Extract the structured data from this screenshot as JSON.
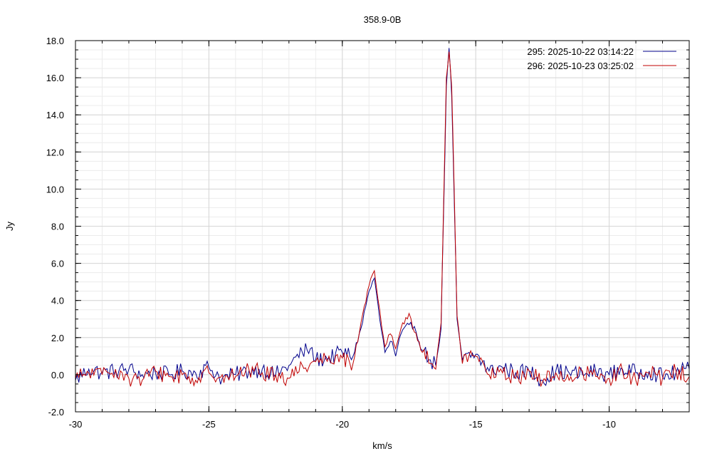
{
  "chart_data": {
    "type": "line",
    "title": "358.9-0B",
    "xlabel": "km/s",
    "ylabel": "Jy",
    "xlim": [
      -30,
      -7.0
    ],
    "ylim": [
      -2.0,
      18.0
    ],
    "x_ticks": [
      -30,
      -25,
      -20,
      -15,
      -10
    ],
    "x_tick_labels": [
      "-30",
      "-25",
      "-20",
      "-15",
      "-10"
    ],
    "y_ticks": [
      -2.0,
      0.0,
      2.0,
      4.0,
      6.0,
      8.0,
      10.0,
      12.0,
      14.0,
      16.0,
      18.0
    ],
    "y_tick_labels": [
      "-2.0",
      "0.0",
      "2.0",
      "4.0",
      "6.0",
      "8.0",
      "10.0",
      "12.0",
      "14.0",
      "16.0",
      "18.0"
    ],
    "grid": true,
    "legend_position": "top-right",
    "series": [
      {
        "name": "295:   2025-10-22 03:14:22",
        "color": "#00008b",
        "x": [
          -30.0,
          -29.5,
          -29.0,
          -28.5,
          -28.0,
          -27.5,
          -27.0,
          -26.5,
          -26.0,
          -25.5,
          -25.0,
          -24.5,
          -24.0,
          -23.5,
          -23.0,
          -22.5,
          -22.0,
          -21.5,
          -21.2,
          -21.0,
          -20.5,
          -20.0,
          -19.6,
          -19.3,
          -19.0,
          -18.8,
          -18.6,
          -18.4,
          -18.2,
          -18.0,
          -17.8,
          -17.5,
          -17.3,
          -17.0,
          -16.7,
          -16.5,
          -16.3,
          -16.2,
          -16.1,
          -16.0,
          -15.9,
          -15.8,
          -15.7,
          -15.5,
          -15.0,
          -14.5,
          -14.0,
          -13.5,
          -13.0,
          -12.5,
          -12.0,
          -11.5,
          -11.0,
          -10.5,
          -10.0,
          -9.5,
          -9.0,
          -8.5,
          -8.0,
          -7.5,
          -7.0
        ],
        "values": [
          -0.3,
          0.3,
          0.1,
          0.2,
          0.3,
          0.0,
          0.1,
          0.0,
          0.2,
          0.1,
          0.4,
          -0.2,
          0.0,
          0.2,
          0.3,
          0.0,
          0.5,
          1.2,
          1.4,
          0.8,
          0.9,
          1.2,
          1.0,
          2.5,
          4.5,
          5.2,
          3.0,
          1.2,
          1.8,
          1.0,
          2.2,
          2.7,
          2.6,
          1.3,
          0.8,
          0.5,
          2.5,
          9.0,
          15.5,
          17.6,
          15.0,
          9.0,
          3.0,
          0.8,
          1.1,
          0.2,
          0.4,
          0.1,
          0.2,
          -0.3,
          0.2,
          0.1,
          0.0,
          0.2,
          0.0,
          0.3,
          0.1,
          0.2,
          -0.1,
          0.1,
          0.3
        ]
      },
      {
        "name": "296:   2025-10-23 03:25:02",
        "color": "#c00000",
        "x": [
          -30.0,
          -29.5,
          -29.0,
          -28.5,
          -28.0,
          -27.5,
          -27.0,
          -26.5,
          -26.0,
          -25.5,
          -25.0,
          -24.5,
          -24.0,
          -23.5,
          -23.0,
          -22.5,
          -22.0,
          -21.5,
          -21.2,
          -21.0,
          -20.5,
          -20.0,
          -19.6,
          -19.3,
          -19.0,
          -18.8,
          -18.6,
          -18.4,
          -18.2,
          -18.0,
          -17.8,
          -17.5,
          -17.3,
          -17.0,
          -16.7,
          -16.5,
          -16.3,
          -16.2,
          -16.1,
          -16.0,
          -15.9,
          -15.8,
          -15.7,
          -15.5,
          -15.0,
          -14.5,
          -14.0,
          -13.5,
          -13.0,
          -12.5,
          -12.0,
          -11.5,
          -11.0,
          -10.5,
          -10.0,
          -9.5,
          -9.0,
          -8.5,
          -8.0,
          -7.5,
          -7.0
        ],
        "values": [
          -0.2,
          0.1,
          0.0,
          0.3,
          -0.2,
          -0.3,
          0.2,
          -0.1,
          0.0,
          -0.3,
          0.1,
          0.0,
          -0.1,
          0.3,
          0.1,
          0.0,
          -0.2,
          0.5,
          0.6,
          0.7,
          1.0,
          0.9,
          0.6,
          2.8,
          4.8,
          5.6,
          3.5,
          1.5,
          2.2,
          1.4,
          2.5,
          3.3,
          2.3,
          1.2,
          0.6,
          0.3,
          2.8,
          9.5,
          16.0,
          17.4,
          15.5,
          9.5,
          3.2,
          0.6,
          1.0,
          0.0,
          0.1,
          -0.2,
          0.2,
          -0.4,
          0.1,
          -0.3,
          0.2,
          -0.1,
          -0.2,
          0.2,
          -0.3,
          0.1,
          -0.2,
          0.2,
          -0.1
        ]
      }
    ]
  }
}
